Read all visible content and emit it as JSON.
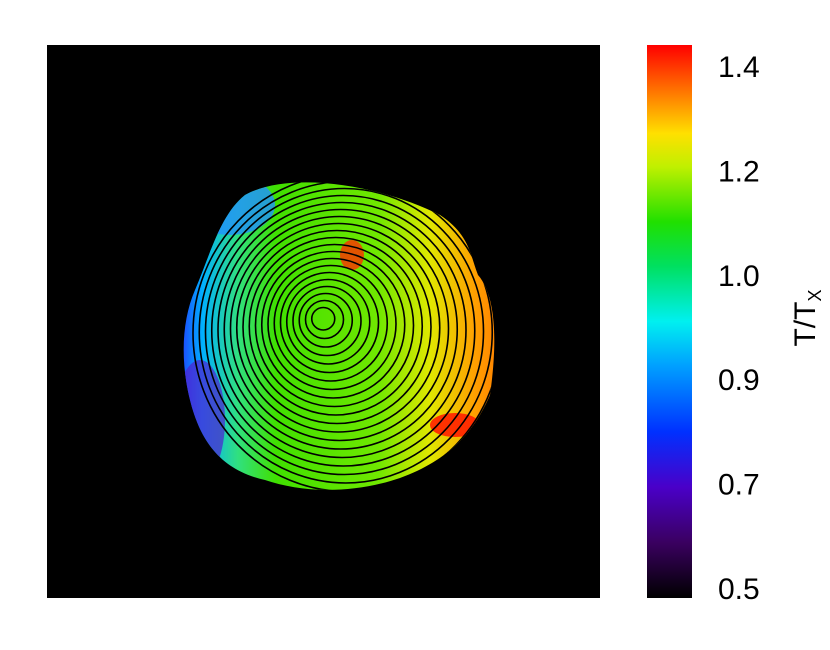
{
  "chart_data": {
    "type": "heatmap",
    "colorbar": {
      "label": "T/T",
      "label_subscript": "X",
      "ticks": [
        0.5,
        0.7,
        0.9,
        {
          "value": 1,
          "label": "1.0"
        },
        1.2,
        1.4
      ]
    }
  }
}
